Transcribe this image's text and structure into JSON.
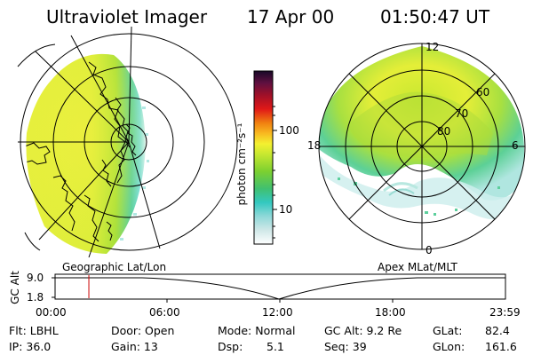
{
  "header": {
    "title": "Ultraviolet Imager",
    "date": "17 Apr 00",
    "time": "01:50:47 UT"
  },
  "colorbar": {
    "unit_label": "photon cm⁻²s⁻¹",
    "ticks": [
      "100",
      "10"
    ]
  },
  "polar_plot": {
    "mlt_labels": [
      "12",
      "18",
      "6",
      "0"
    ],
    "mlat_labels": [
      "60",
      "70",
      "80"
    ]
  },
  "panel_labels": {
    "left": "Geographic Lat/Lon",
    "right": "Apex MLat/MLT"
  },
  "altitude_plot": {
    "ylabel": "GC Alt",
    "yticks": [
      "9.0",
      "1.8"
    ],
    "xticks": [
      "00:00",
      "06:00",
      "12:00",
      "18:00",
      "23:59"
    ],
    "current_time_fraction": 0.075
  },
  "status": {
    "filter": "Flt: LBHL",
    "ip": "IP: 36.0",
    "door": "Door: Open",
    "gain": "Gain: 13",
    "mode": "Mode: Normal",
    "dsp_label": "Dsp:",
    "dsp_value": "5.1",
    "gc_alt": "GC Alt: 9.2 Re",
    "seq": "Seq: 39",
    "glat_label": "GLat:",
    "glat_value": "82.4",
    "glon_label": "GLon:",
    "glon_value": "161.6"
  },
  "colors": {
    "text": "#000000",
    "marker": "#cc0000",
    "aurora_green": "#7fd43a",
    "aurora_yellow": "#e8f03a",
    "aurora_cyan": "#5fd7d0"
  }
}
